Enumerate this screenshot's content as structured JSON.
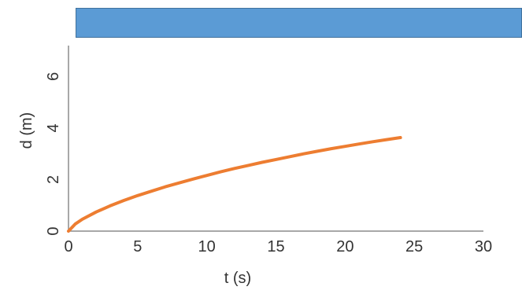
{
  "banner": {
    "color": "#5b9bd5",
    "border_color": "#41719c"
  },
  "chart_data": {
    "type": "line",
    "title": "",
    "xlabel": "t (s)",
    "ylabel": "d (m)",
    "xlim": [
      0,
      30
    ],
    "ylim": [
      0,
      7.2
    ],
    "xticks": [
      0,
      5,
      10,
      15,
      20,
      25,
      30
    ],
    "yticks": [
      0,
      2,
      4,
      6
    ],
    "grid": false,
    "axis_color": "#8c8c8c",
    "series": [
      {
        "color": "#ed7d31",
        "x": [
          0,
          0.5,
          1,
          2,
          3,
          4,
          5,
          6,
          7,
          8,
          9,
          10,
          11,
          12,
          13,
          14,
          15,
          16,
          17,
          18,
          19,
          20,
          21,
          22,
          23,
          24
        ],
        "y": [
          0,
          0.28,
          0.46,
          0.74,
          0.98,
          1.19,
          1.38,
          1.55,
          1.72,
          1.87,
          2.02,
          2.16,
          2.3,
          2.43,
          2.55,
          2.67,
          2.78,
          2.89,
          3.0,
          3.1,
          3.2,
          3.29,
          3.38,
          3.47,
          3.55,
          3.63
        ]
      }
    ]
  }
}
